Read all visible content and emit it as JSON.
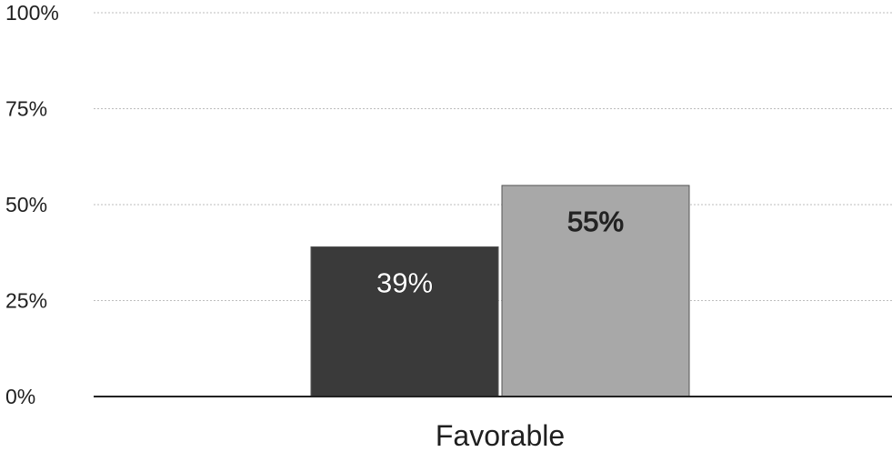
{
  "chart_data": {
    "type": "bar",
    "categories": [
      "Favorable"
    ],
    "series": [
      {
        "values": [
          39
        ],
        "color": "#3a3a3a",
        "label_color": "#ffffff"
      },
      {
        "values": [
          55
        ],
        "color": "#a8a8a8",
        "label_color": "#222222"
      }
    ],
    "data_labels": [
      [
        "39%"
      ],
      [
        "55%"
      ]
    ],
    "yticks": [
      {
        "value": 0,
        "label": "0%"
      },
      {
        "value": 25,
        "label": "25%"
      },
      {
        "value": 50,
        "label": "50%"
      },
      {
        "value": 75,
        "label": "75%"
      },
      {
        "value": 100,
        "label": "100%"
      }
    ],
    "ylim": [
      0,
      100
    ],
    "title": "",
    "xlabel": "",
    "ylabel": "",
    "grid": true,
    "gridline_style": "dashed",
    "legend": "none"
  }
}
